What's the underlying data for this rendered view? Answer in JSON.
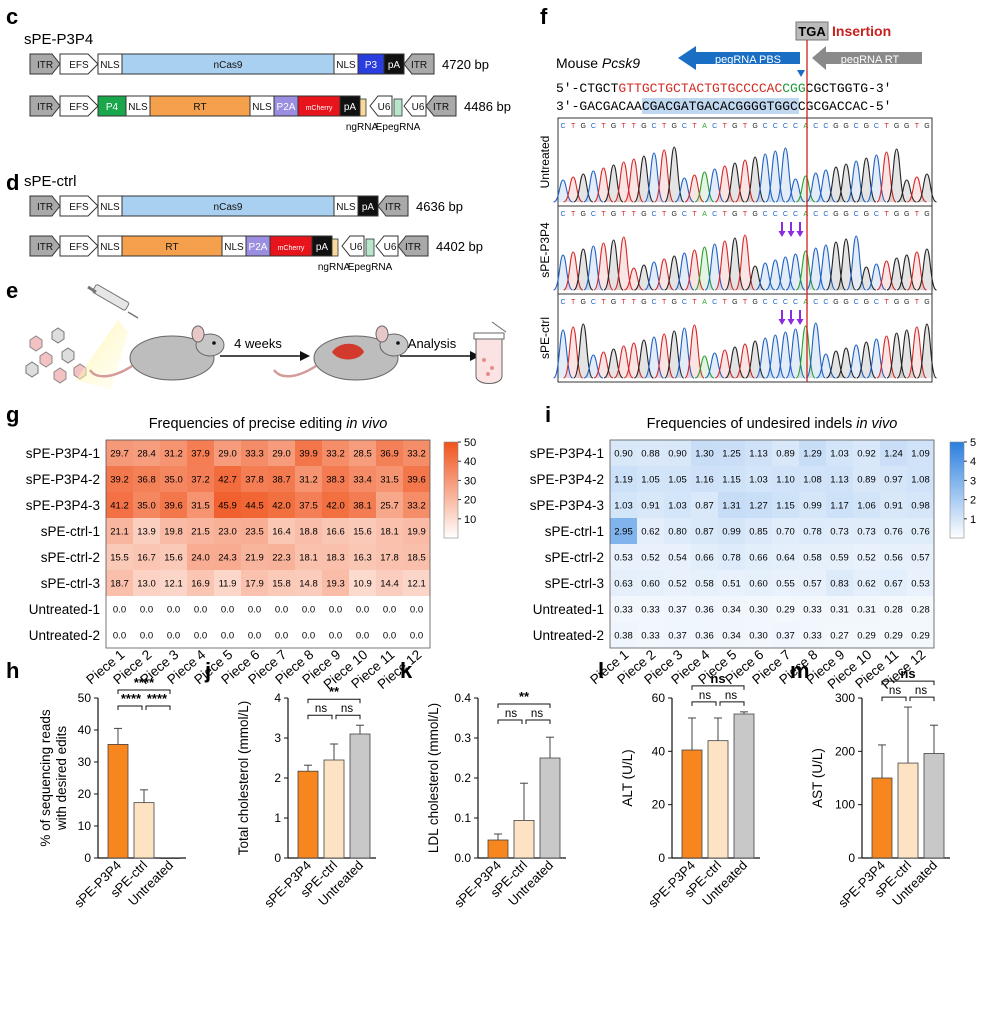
{
  "panels": {
    "c": "c",
    "d": "d",
    "e": "e",
    "f": "f",
    "g": "g",
    "h": "h",
    "i": "i",
    "j": "j",
    "k": "k",
    "l": "l",
    "m": "m"
  },
  "constructs": {
    "c": {
      "title": "sPE-P3P4",
      "rows": [
        {
          "size": "4720 bp",
          "elements": [
            "ITR",
            "EFS",
            "NLS",
            "nCas9",
            "NLS",
            "P3",
            "pA",
            "ITR"
          ]
        },
        {
          "size": "4486 bp",
          "elements": [
            "ITR",
            "EFS",
            "P4",
            "NLS",
            "RT",
            "NLS",
            "P2A",
            "mCherry",
            "pA",
            "U6",
            "U6",
            "ITR"
          ],
          "sublabels": [
            "ngRNA",
            "EpegRNA"
          ]
        }
      ]
    },
    "d": {
      "title": "sPE-ctrl",
      "rows": [
        {
          "size": "4636 bp",
          "elements": [
            "ITR",
            "EFS",
            "NLS",
            "nCas9",
            "NLS",
            "pA",
            "ITR"
          ]
        },
        {
          "size": "4402 bp",
          "elements": [
            "ITR",
            "EFS",
            "NLS",
            "RT",
            "NLS",
            "P2A",
            "mCherry",
            "pA",
            "U6",
            "U6",
            "ITR"
          ],
          "sublabels": [
            "ngRNA",
            "EpegRNA"
          ]
        }
      ]
    }
  },
  "workflow": {
    "step1": "4 weeks",
    "step2": "Analysis"
  },
  "sequencing": {
    "insertion_box": "TGA",
    "insertion_label": "Insertion",
    "gene_prefix": "Mouse ",
    "gene": "Pcsk9",
    "pbs_label": "pegRNA PBS",
    "rt_label": "pegRNA RT",
    "top_strand": {
      "prefix": "5′-CTGCT",
      "red": "GTTGCTGCTACTGTGCCCCAC",
      "green": "CGG",
      "suffix": "CGCTGGTG-3′"
    },
    "bottom_strand": "3′-GACGACAACGACGATGACACGGGGTGGCCGCGACCAC-5′",
    "read_sequence": "CTGCTGTTGCTGCTACTGTGCCCCACCGGCGCTGGTG",
    "tracks": [
      "Untreated",
      "sPE-P3P4",
      "sPE-ctrl"
    ]
  },
  "heatmaps": [
    {
      "title_main": "Frequencies of precise editing ",
      "title_italic": "in vivo",
      "rows": [
        "sPE-P3P4-1",
        "sPE-P3P4-2",
        "sPE-P3P4-3",
        "sPE-ctrl-1",
        "sPE-ctrl-2",
        "sPE-ctrl-3",
        "Untreated-1",
        "Untreated-2"
      ],
      "cols": [
        "Piece 1",
        "Piece 2",
        "Piece 3",
        "Piece 4",
        "Piece 5",
        "Piece 6",
        "Piece 7",
        "Piece 8",
        "Piece 9",
        "Piece 10",
        "Piece 11",
        "Piece 12"
      ],
      "values": [
        [
          29.7,
          28.4,
          31.2,
          37.9,
          29.0,
          33.3,
          29.0,
          39.9,
          33.2,
          28.5,
          36.9,
          33.2
        ],
        [
          39.2,
          36.8,
          35.0,
          37.2,
          42.7,
          37.8,
          38.7,
          31.2,
          38.3,
          33.4,
          31.5,
          39.6
        ],
        [
          41.2,
          35.0,
          39.6,
          31.5,
          45.9,
          44.5,
          42.0,
          37.5,
          42.0,
          38.1,
          25.7,
          33.2
        ],
        [
          21.1,
          13.9,
          19.8,
          21.5,
          23.0,
          23.5,
          16.4,
          18.8,
          16.6,
          15.6,
          18.1,
          19.9
        ],
        [
          15.5,
          16.7,
          15.6,
          24.0,
          24.3,
          21.9,
          22.3,
          18.1,
          18.3,
          16.3,
          17.8,
          18.5
        ],
        [
          18.7,
          13.0,
          12.1,
          16.9,
          11.9,
          17.9,
          15.8,
          14.8,
          19.3,
          10.9,
          14.4,
          12.1
        ],
        [
          0.0,
          0.0,
          0.0,
          0.0,
          0.0,
          0.0,
          0.0,
          0.0,
          0.0,
          0.0,
          0.0,
          0.0
        ],
        [
          0.0,
          0.0,
          0.0,
          0.0,
          0.0,
          0.0,
          0.0,
          0.0,
          0.0,
          0.0,
          0.0,
          0.0
        ]
      ],
      "decimals": 1,
      "max": 50,
      "colorbar_ticks": [
        10,
        20,
        30,
        40,
        50
      ],
      "colors": {
        "low": "#ffffff",
        "high": "#f0531c"
      }
    },
    {
      "title_main": "Frequencies of undesired indels ",
      "title_italic": "in vivo",
      "rows": [
        "sPE-P3P4-1",
        "sPE-P3P4-2",
        "sPE-P3P4-3",
        "sPE-ctrl-1",
        "sPE-ctrl-2",
        "sPE-ctrl-3",
        "Untreated-1",
        "Untreated-2"
      ],
      "cols": [
        "Piece 1",
        "Piece 2",
        "Piece 3",
        "Piece 4",
        "Piece 5",
        "Piece 6",
        "Piece 7",
        "Piece 8",
        "Piece 9",
        "Piece 10",
        "Piece 11",
        "Piece 12"
      ],
      "values": [
        [
          0.9,
          0.88,
          0.9,
          1.3,
          1.25,
          1.13,
          0.89,
          1.29,
          1.03,
          0.92,
          1.24,
          1.09
        ],
        [
          1.19,
          1.05,
          1.05,
          1.16,
          1.15,
          1.03,
          1.1,
          1.08,
          1.13,
          0.89,
          0.97,
          1.08
        ],
        [
          1.03,
          0.91,
          1.03,
          0.87,
          1.31,
          1.27,
          1.15,
          0.99,
          1.17,
          1.06,
          0.91,
          0.98
        ],
        [
          2.95,
          0.62,
          0.8,
          0.87,
          0.99,
          0.85,
          0.7,
          0.78,
          0.73,
          0.73,
          0.76,
          0.76
        ],
        [
          0.53,
          0.52,
          0.54,
          0.66,
          0.78,
          0.66,
          0.64,
          0.58,
          0.59,
          0.52,
          0.56,
          0.57
        ],
        [
          0.63,
          0.6,
          0.52,
          0.58,
          0.51,
          0.6,
          0.55,
          0.57,
          0.83,
          0.62,
          0.67,
          0.53
        ],
        [
          0.33,
          0.33,
          0.37,
          0.36,
          0.34,
          0.3,
          0.29,
          0.33,
          0.31,
          0.31,
          0.28,
          0.28
        ],
        [
          0.38,
          0.33,
          0.37,
          0.36,
          0.34,
          0.3,
          0.37,
          0.33,
          0.27,
          0.29,
          0.29,
          0.29
        ]
      ],
      "decimals": 2,
      "max": 5,
      "colorbar_ticks": [
        1,
        2,
        3,
        4,
        5
      ],
      "colors": {
        "low": "#ffffff",
        "high": "#2a7fe0"
      }
    }
  ],
  "chart_data": [
    {
      "type": "bar",
      "panel": "h",
      "categories": [
        "sPE-P3P4",
        "sPE-ctrl",
        "Untreated"
      ],
      "values": [
        35.5,
        17.3,
        0.0
      ],
      "errors": [
        5,
        4,
        0.1
      ],
      "ylabel": "% of sequencing reads with desired edits",
      "ylabel_lines": [
        "% of sequencing reads",
        "with desired edits"
      ],
      "ylim": [
        0,
        50
      ],
      "yticks": [
        0,
        10,
        20,
        30,
        40,
        50
      ],
      "significance": [
        "****",
        "****",
        "****"
      ],
      "colors": [
        "#f7861e",
        "#fde3c4",
        "#c8c8c8"
      ]
    },
    {
      "type": "bar",
      "panel": "j",
      "categories": [
        "sPE-P3P4",
        "sPE-ctrl",
        "Untreated"
      ],
      "values": [
        2.17,
        2.45,
        3.1
      ],
      "errors": [
        0.15,
        0.4,
        0.22
      ],
      "ylabel": "Total cholesterol (mmol/L)",
      "ylim": [
        0,
        4
      ],
      "yticks": [
        0,
        1,
        2,
        3,
        4
      ],
      "significance": [
        "**",
        "ns",
        "ns"
      ],
      "colors": [
        "#f7861e",
        "#fde3c4",
        "#c8c8c8"
      ]
    },
    {
      "type": "bar",
      "panel": "k",
      "categories": [
        "sPE-P3P4",
        "sPE-ctrl",
        "Untreated"
      ],
      "values": [
        0.045,
        0.094,
        0.25
      ],
      "errors": [
        0.015,
        0.093,
        0.052
      ],
      "ylabel": "LDL cholesterol (mmol/L)",
      "ylim": [
        0,
        0.4
      ],
      "yticks": [
        0.0,
        0.1,
        0.2,
        0.3,
        0.4
      ],
      "significance": [
        "**",
        "ns",
        "ns"
      ],
      "colors": [
        "#f7861e",
        "#fde3c4",
        "#c8c8c8"
      ]
    },
    {
      "type": "bar",
      "panel": "l",
      "categories": [
        "sPE-P3P4",
        "sPE-ctrl",
        "Untreated"
      ],
      "values": [
        40.5,
        44,
        54
      ],
      "errors": [
        12,
        8.5,
        0.8
      ],
      "ylabel": "ALT (U/L)",
      "ylim": [
        0,
        60
      ],
      "yticks": [
        0,
        20,
        40,
        60
      ],
      "significance": [
        "ns",
        "ns",
        "ns"
      ],
      "colors": [
        "#f7861e",
        "#fde3c4",
        "#c8c8c8"
      ]
    },
    {
      "type": "bar",
      "panel": "m",
      "categories": [
        "sPE-P3P4",
        "sPE-ctrl",
        "Untreated"
      ],
      "values": [
        150,
        178,
        196
      ],
      "errors": [
        62,
        105,
        53
      ],
      "ylabel": "AST (U/L)",
      "ylim": [
        0,
        300
      ],
      "yticks": [
        0,
        100,
        200,
        300
      ],
      "significance": [
        "ns",
        "ns",
        "ns"
      ],
      "colors": [
        "#f7861e",
        "#fde3c4",
        "#c8c8c8"
      ]
    }
  ]
}
